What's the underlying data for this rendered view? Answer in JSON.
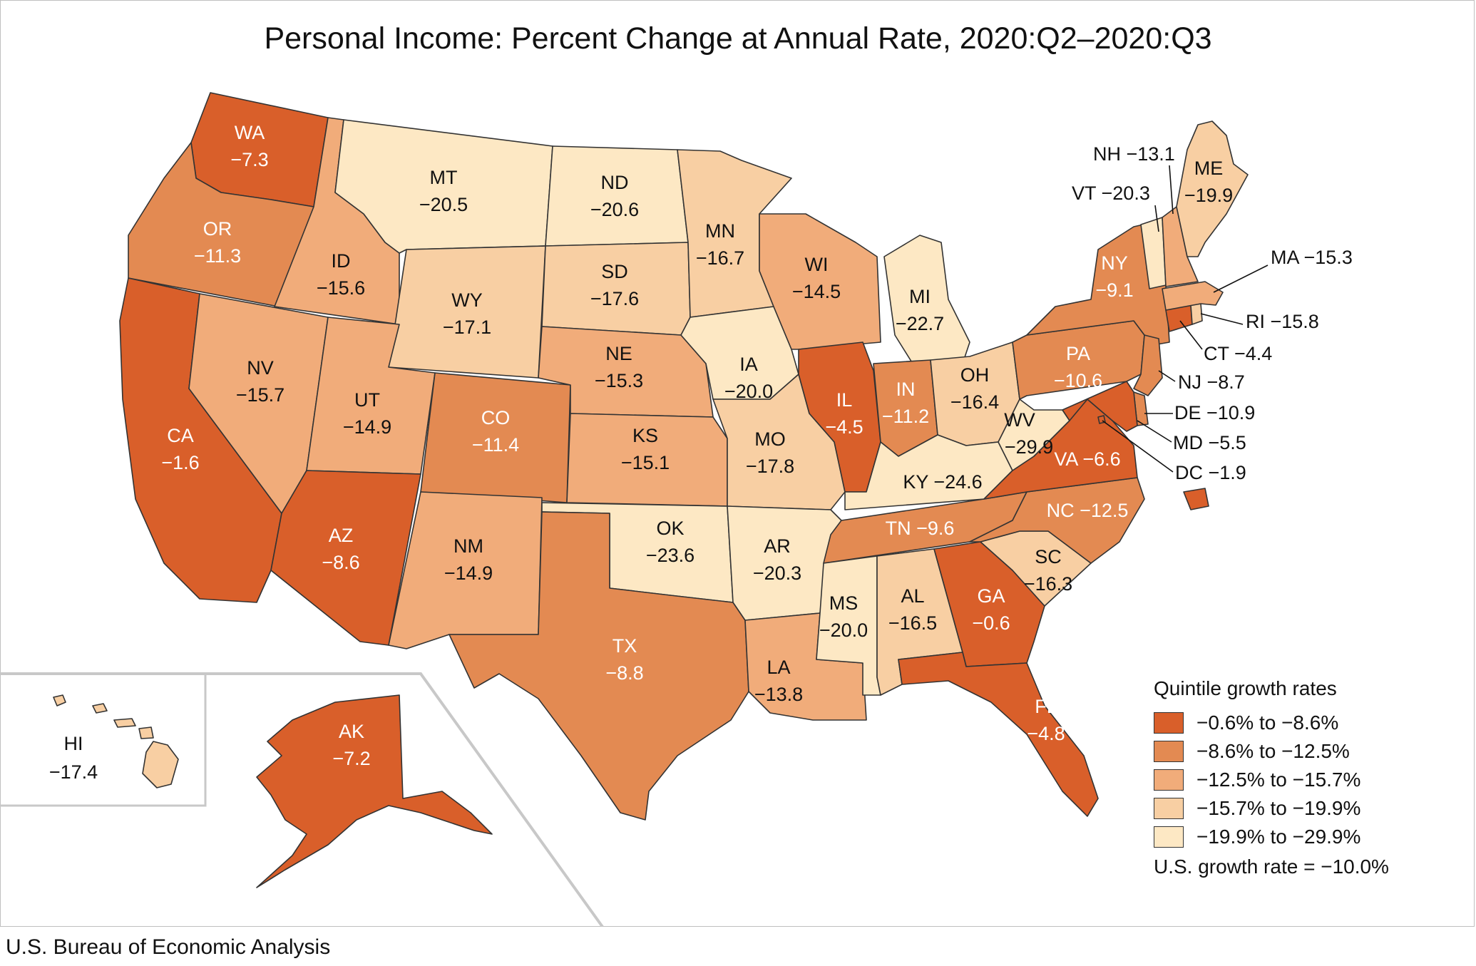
{
  "title": "Personal Income: Percent Change at Annual Rate, 2020:Q2–2020:Q3",
  "source": "U.S. Bureau of Economic Analysis",
  "legend": {
    "title": "Quintile growth rates",
    "items": [
      {
        "label": "−0.6% to −8.6%",
        "color": "#d95f2a"
      },
      {
        "label": "−8.6% to −12.5%",
        "color": "#e38a52"
      },
      {
        "label": "−12.5% to −15.7%",
        "color": "#f1ac7a"
      },
      {
        "label": "−15.7% to −19.9%",
        "color": "#f8cfa3"
      },
      {
        "label": "−19.9% to −29.9%",
        "color": "#fde8c4"
      }
    ],
    "us_rate": "U.S. growth rate = −10.0%"
  },
  "states": {
    "WA": {
      "abbr": "WA",
      "value": "−7.3"
    },
    "OR": {
      "abbr": "OR",
      "value": "−11.3"
    },
    "CA": {
      "abbr": "CA",
      "value": "−1.6"
    },
    "ID": {
      "abbr": "ID",
      "value": "−15.6"
    },
    "NV": {
      "abbr": "NV",
      "value": "−15.7"
    },
    "MT": {
      "abbr": "MT",
      "value": "−20.5"
    },
    "WY": {
      "abbr": "WY",
      "value": "−17.1"
    },
    "UT": {
      "abbr": "UT",
      "value": "−14.9"
    },
    "AZ": {
      "abbr": "AZ",
      "value": "−8.6"
    },
    "CO": {
      "abbr": "CO",
      "value": "−11.4"
    },
    "NM": {
      "abbr": "NM",
      "value": "−14.9"
    },
    "ND": {
      "abbr": "ND",
      "value": "−20.6"
    },
    "SD": {
      "abbr": "SD",
      "value": "−17.6"
    },
    "NE": {
      "abbr": "NE",
      "value": "−15.3"
    },
    "KS": {
      "abbr": "KS",
      "value": "−15.1"
    },
    "OK": {
      "abbr": "OK",
      "value": "−23.6"
    },
    "TX": {
      "abbr": "TX",
      "value": "−8.8"
    },
    "MN": {
      "abbr": "MN",
      "value": "−16.7"
    },
    "IA": {
      "abbr": "IA",
      "value": "−20.0"
    },
    "MO": {
      "abbr": "MO",
      "value": "−17.8"
    },
    "AR": {
      "abbr": "AR",
      "value": "−20.3"
    },
    "LA": {
      "abbr": "LA",
      "value": "−13.8"
    },
    "WI": {
      "abbr": "WI",
      "value": "−14.5"
    },
    "IL": {
      "abbr": "IL",
      "value": "−4.5"
    },
    "MI": {
      "abbr": "MI",
      "value": "−22.7"
    },
    "IN": {
      "abbr": "IN",
      "value": "−11.2"
    },
    "OH": {
      "abbr": "OH",
      "value": "−16.4"
    },
    "KY": {
      "abbr": "KY",
      "value": "−24.6"
    },
    "TN": {
      "abbr": "TN",
      "value": "−9.6"
    },
    "MS": {
      "abbr": "MS",
      "value": "−20.0"
    },
    "AL": {
      "abbr": "AL",
      "value": "−16.5"
    },
    "GA": {
      "abbr": "GA",
      "value": "−0.6"
    },
    "FL": {
      "abbr": "FL",
      "value": "−4.8"
    },
    "SC": {
      "abbr": "SC",
      "value": "−16.3"
    },
    "NC": {
      "abbr": "NC",
      "value": "−12.5"
    },
    "VA": {
      "abbr": "VA",
      "value": "−6.6"
    },
    "WV": {
      "abbr": "WV",
      "value": "−29.9"
    },
    "PA": {
      "abbr": "PA",
      "value": "−10.6"
    },
    "NY": {
      "abbr": "NY",
      "value": "−9.1"
    },
    "ME": {
      "abbr": "ME",
      "value": "−19.9"
    },
    "NH": {
      "abbr": "NH",
      "value": "−13.1"
    },
    "VT": {
      "abbr": "VT",
      "value": "−20.3"
    },
    "MA": {
      "abbr": "MA",
      "value": "−15.3"
    },
    "RI": {
      "abbr": "RI",
      "value": "−15.8"
    },
    "CT": {
      "abbr": "CT",
      "value": "−4.4"
    },
    "NJ": {
      "abbr": "NJ",
      "value": "−8.7"
    },
    "DE": {
      "abbr": "DE",
      "value": "−10.9"
    },
    "MD": {
      "abbr": "MD",
      "value": "−5.5"
    },
    "DC": {
      "abbr": "DC",
      "value": "−1.9"
    },
    "AK": {
      "abbr": "AK",
      "value": "−7.2"
    },
    "HI": {
      "abbr": "HI",
      "value": "−17.4"
    }
  }
}
